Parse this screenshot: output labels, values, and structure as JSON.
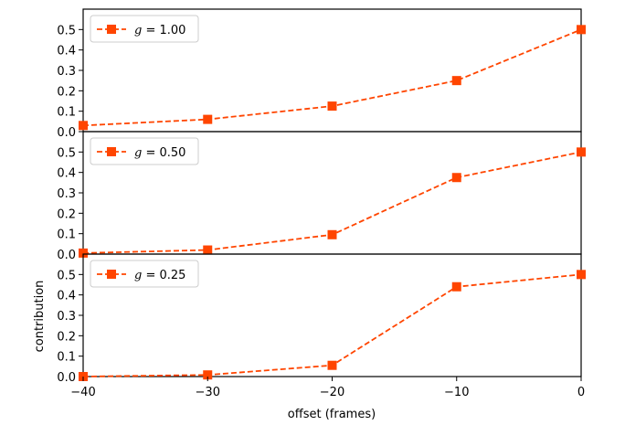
{
  "chart_data": {
    "type": "line",
    "layout": "three vertically stacked panels sharing the x axis",
    "xlabel": "offset (frames)",
    "ylabel": "contribution",
    "x": [
      -40,
      -30,
      -20,
      -10,
      0
    ],
    "xlim": [
      -40,
      0
    ],
    "ylim": [
      0,
      0.6
    ],
    "x_ticks": [
      -40,
      -30,
      -20,
      -10,
      0
    ],
    "x_tick_labels": [
      "−40",
      "−30",
      "−20",
      "−10",
      "0"
    ],
    "y_ticks": [
      0.0,
      0.1,
      0.2,
      0.3,
      0.4,
      0.5
    ],
    "y_tick_labels": [
      "0.0",
      "0.1",
      "0.2",
      "0.3",
      "0.4",
      "0.5"
    ],
    "grid": false,
    "legend_placement": "upper-left",
    "line_style": "dashed",
    "marker": "square",
    "color": "#ff4500",
    "panels": [
      {
        "legend": {
          "symbol": "g",
          "rest": " = 1.00"
        },
        "series": [
          {
            "name": "g = 1.00",
            "values": [
              0.03,
              0.06,
              0.125,
              0.25,
              0.5
            ]
          }
        ]
      },
      {
        "legend": {
          "symbol": "g",
          "rest": " = 0.50"
        },
        "series": [
          {
            "name": "g = 0.50",
            "values": [
              0.005,
              0.02,
              0.095,
              0.375,
              0.5
            ]
          }
        ]
      },
      {
        "legend": {
          "symbol": "g",
          "rest": " = 0.25"
        },
        "series": [
          {
            "name": "g = 0.25",
            "values": [
              0.0,
              0.008,
              0.055,
              0.44,
              0.5
            ]
          }
        ]
      }
    ]
  }
}
